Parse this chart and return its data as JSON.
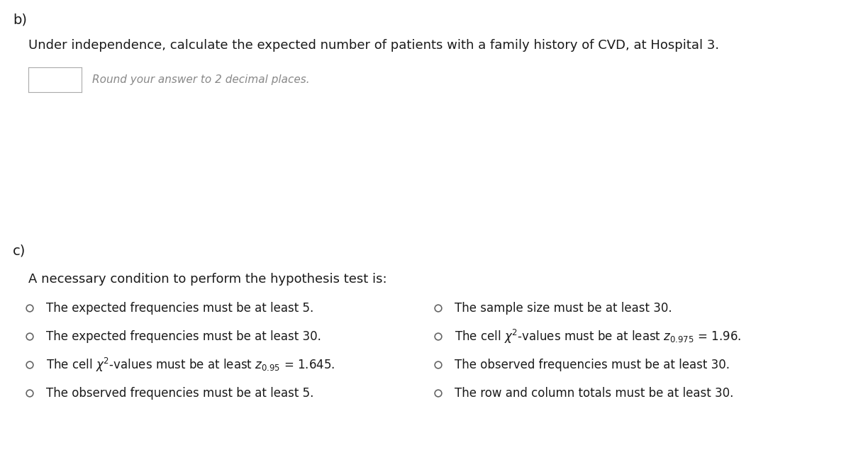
{
  "bg_color": "#ffffff",
  "text_color": "#1a1a2e",
  "b_label": "b)",
  "b_question": "Under independence, calculate the expected number of patients with a family history of CVD, at Hospital 3.",
  "b_subtext": "Round your answer to 2 decimal places.",
  "c_label": "c)",
  "c_question": "A necessary condition to perform the hypothesis test is:",
  "label_fontsize": 14,
  "question_fontsize": 13,
  "option_fontsize": 12,
  "subtext_fontsize": 11
}
